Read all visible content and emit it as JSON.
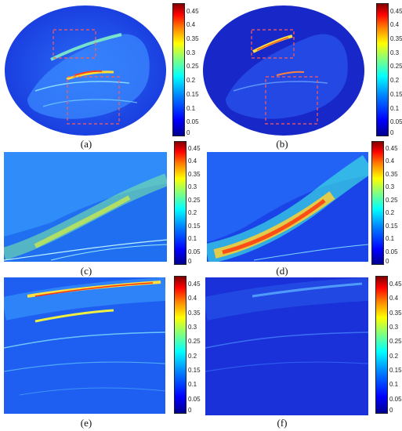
{
  "panels": [
    {
      "caption": "(a)"
    },
    {
      "caption": "(b)"
    },
    {
      "caption": "(c)"
    },
    {
      "caption": "(d)"
    },
    {
      "caption": "(e)"
    },
    {
      "caption": "(f)"
    }
  ],
  "colorbar_ticks": [
    "0.45",
    "0.4",
    "0.35",
    "0.3",
    "0.25",
    "0.2",
    "0.15",
    "0.1",
    "0.05",
    "0"
  ],
  "colormap": "jet",
  "colorbar_range": [
    0,
    0.48
  ],
  "colors": {
    "background": "#ffffff",
    "low": "#00008f",
    "high": "#800000",
    "roi_box": "#ff5a5a"
  }
}
